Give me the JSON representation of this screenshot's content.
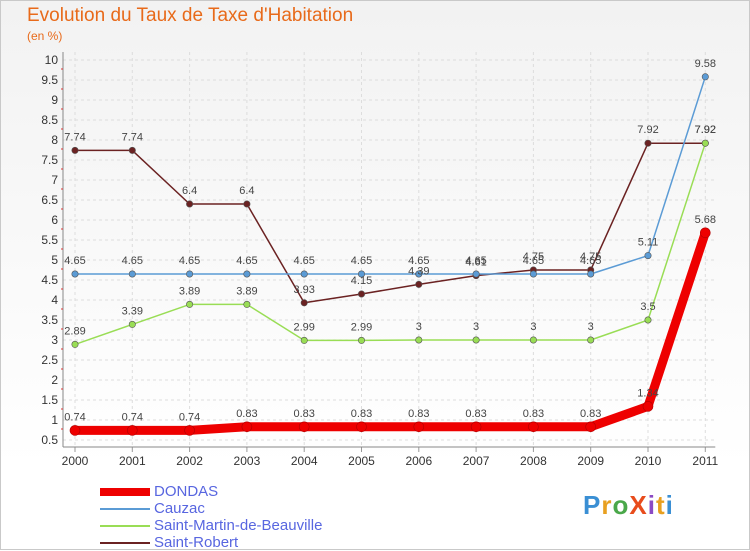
{
  "title": "Evolution du Taux de Taxe d'Habitation",
  "subtitle": "(en %)",
  "logo": {
    "text": "ProXiti",
    "colors": [
      "#3a8fd4",
      "#e8a020",
      "#4aa84a",
      "#e84c1c",
      "#8a4ac4",
      "#e8a020",
      "#3a8fd4"
    ]
  },
  "chart_data": {
    "type": "line",
    "title": "Evolution du Taux de Taxe d'Habitation",
    "ylabel": "(en %)",
    "categories": [
      "2000",
      "2001",
      "2002",
      "2003",
      "2004",
      "2005",
      "2006",
      "2007",
      "2008",
      "2009",
      "2010",
      "2011"
    ],
    "ylim": [
      0.5,
      10
    ],
    "yticks": [
      "0.5",
      "1",
      "1.5",
      "2",
      "2.5",
      "3",
      "3.5",
      "4",
      "4.5",
      "5",
      "5.5",
      "6",
      "6.5",
      "7",
      "7.5",
      "8",
      "8.5",
      "9",
      "9.5",
      "10"
    ],
    "grid": true,
    "legend": "bottom-left",
    "series": [
      {
        "name": "DONDAS",
        "color": "#ee0000",
        "values": [
          0.74,
          0.74,
          0.74,
          0.83,
          0.83,
          0.83,
          0.83,
          0.83,
          0.83,
          0.83,
          1.34,
          5.68
        ],
        "labels": [
          "0.74",
          "0.74",
          "0.74",
          "0.83",
          "0.83",
          "0.83",
          "0.83",
          "0.83",
          "0.83",
          "0.83",
          "1.34",
          "5.68"
        ]
      },
      {
        "name": "Cauzac",
        "color": "#5b9bd5",
        "values": [
          4.65,
          4.65,
          4.65,
          4.65,
          4.65,
          4.65,
          4.65,
          4.65,
          4.65,
          4.65,
          5.11,
          9.58
        ],
        "labels": [
          "4.65",
          "4.65",
          "4.65",
          "4.65",
          "4.65",
          "4.65",
          "4.65",
          "4.65",
          "4.65",
          "4.65",
          "5.11",
          "9.58"
        ]
      },
      {
        "name": "Saint-Martin-de-Beauville",
        "color": "#99dd55",
        "values": [
          2.89,
          3.39,
          3.89,
          3.89,
          2.99,
          2.99,
          3,
          3,
          3,
          3,
          3.5,
          7.92
        ],
        "labels": [
          "2.89",
          "3.39",
          "3.89",
          "3.89",
          "2.99",
          "2.99",
          "3",
          "3",
          "3",
          "3",
          "3.5",
          "7.92"
        ]
      },
      {
        "name": "Saint-Robert",
        "color": "#6b2222",
        "values": [
          7.74,
          7.74,
          6.4,
          6.4,
          3.93,
          4.15,
          4.39,
          4.61,
          4.75,
          4.75,
          7.92,
          7.92
        ],
        "labels": [
          "7.74",
          "7.74",
          "6.4",
          "6.4",
          "3.93",
          "4.15",
          "4.39",
          "4.61",
          "4.75",
          "4.75",
          "7.92",
          "7.92"
        ]
      }
    ]
  }
}
